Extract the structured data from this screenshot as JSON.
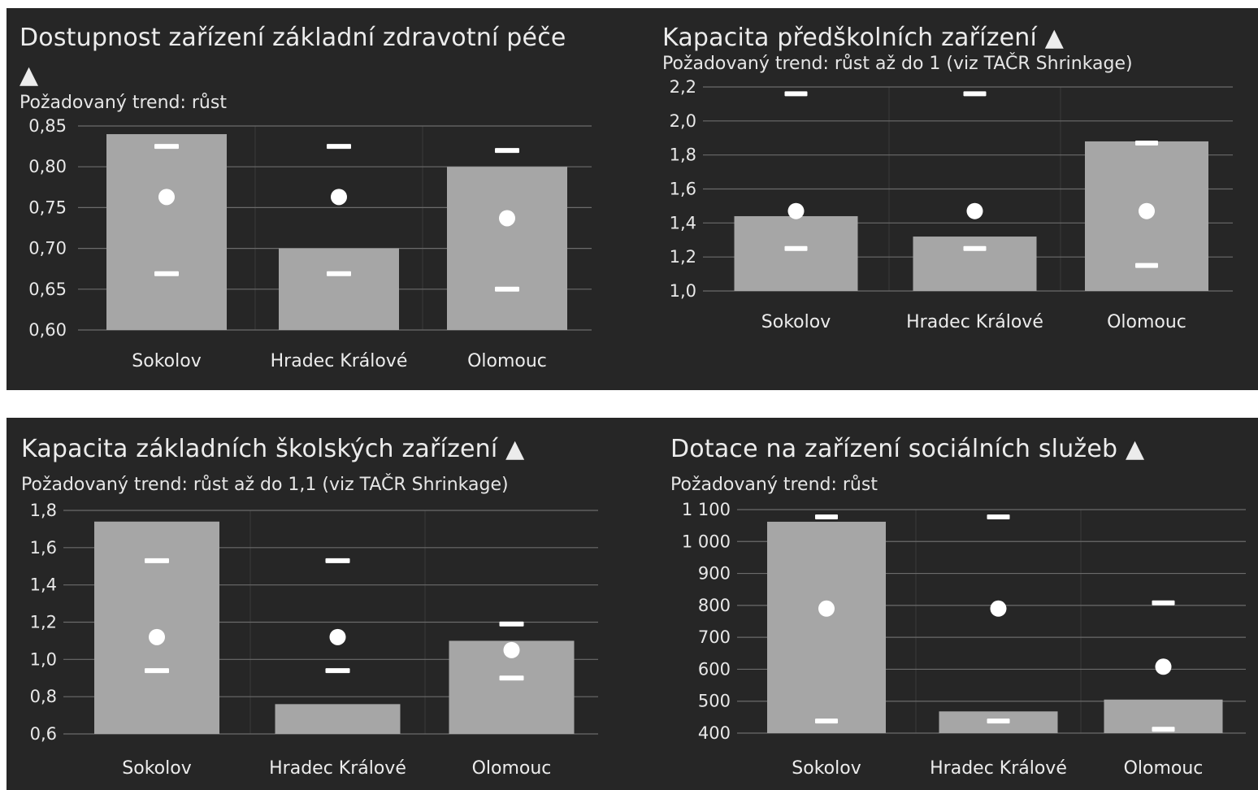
{
  "colors": {
    "panel_bg": "#262626",
    "bar": "#a6a6a6",
    "grid": "#6b6b6b",
    "marker": "#ffffff",
    "text": "#ececec"
  },
  "chart_data": [
    {
      "type": "bar",
      "title": "Dostupnost zařízení základní zdravotní péče ▲",
      "subtitle": "Požadovaný trend: růst",
      "categories": [
        "Sokolov",
        "Hradec Králové",
        "Olomouc"
      ],
      "values": [
        0.84,
        0.7,
        0.8
      ],
      "markers": {
        "upper": [
          0.825,
          0.825,
          0.82
        ],
        "mean": [
          0.763,
          0.763,
          0.737
        ],
        "lower": [
          0.669,
          0.669,
          0.65
        ]
      },
      "ylim": [
        0.6,
        0.85
      ],
      "yticks": [
        "0,85",
        "0,80",
        "0,75",
        "0,70",
        "0,65",
        "0,60"
      ],
      "grid": true
    },
    {
      "type": "bar",
      "title": "Kapacita předškolních zařízení ▲",
      "subtitle": "Požadovaný trend: růst až do 1 (viz TAČR Shrinkage)",
      "categories": [
        "Sokolov",
        "Hradec Králové",
        "Olomouc"
      ],
      "values": [
        1.44,
        1.32,
        1.88
      ],
      "markers": {
        "upper": [
          2.16,
          2.16,
          1.87
        ],
        "mean": [
          1.47,
          1.47,
          1.47
        ],
        "lower": [
          1.25,
          1.25,
          1.15
        ]
      },
      "ylim": [
        1.0,
        2.2
      ],
      "yticks": [
        "2,2",
        "2,0",
        "1,8",
        "1,6",
        "1,4",
        "1,2",
        "1,0"
      ],
      "grid": true
    },
    {
      "type": "bar",
      "title": "Kapacita základních školských zařízení ▲",
      "subtitle": "Požadovaný trend: růst až do 1,1 (viz TAČR Shrinkage)",
      "categories": [
        "Sokolov",
        "Hradec Králové",
        "Olomouc"
      ],
      "values": [
        1.74,
        0.76,
        1.1
      ],
      "markers": {
        "upper": [
          1.53,
          1.53,
          1.19
        ],
        "mean": [
          1.12,
          1.12,
          1.05
        ],
        "lower": [
          0.94,
          0.94,
          0.9
        ]
      },
      "ylim": [
        0.6,
        1.8
      ],
      "yticks": [
        "1,8",
        "1,6",
        "1,4",
        "1,2",
        "1,0",
        "0,8",
        "0,6"
      ],
      "grid": true
    },
    {
      "type": "bar",
      "title": "Dotace na zařízení sociálních služeb ▲",
      "subtitle": "Požadovaný trend: růst",
      "categories": [
        "Sokolov",
        "Hradec Králové",
        "Olomouc"
      ],
      "values": [
        1062,
        468,
        505
      ],
      "markers": {
        "upper": [
          1077,
          1077,
          808
        ],
        "mean": [
          790,
          790,
          608
        ],
        "lower": [
          438,
          438,
          412
        ]
      },
      "ylim": [
        400,
        1100
      ],
      "yticks": [
        "1 100",
        "1 000",
        "900",
        "800",
        "700",
        "600",
        "500",
        "400"
      ],
      "grid": true
    }
  ]
}
